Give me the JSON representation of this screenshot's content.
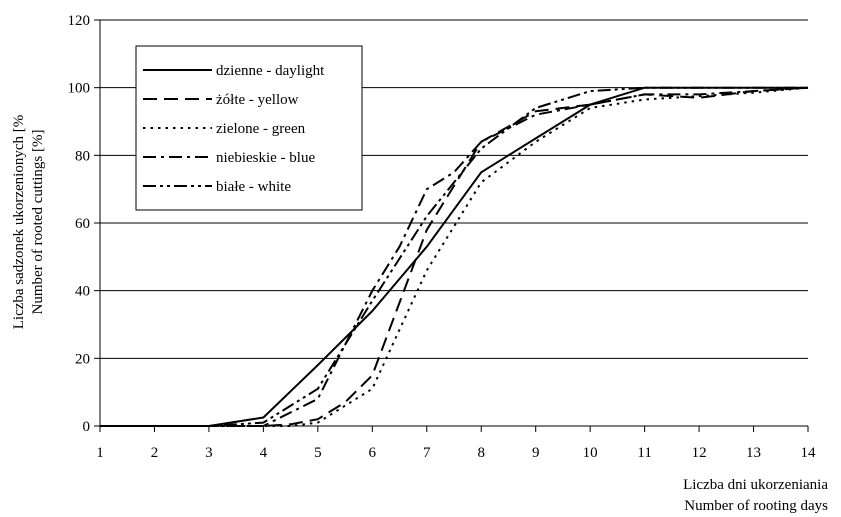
{
  "chart_data": {
    "type": "line",
    "ylabel_lines": [
      "Liczba sadzonek ukorzenionych [%",
      "Number of rooted cuttings [%]"
    ],
    "xlabel_lines": [
      "Liczba dni ukorzeniania",
      "Number of rooting days"
    ],
    "x": [
      1,
      2,
      3,
      4,
      5,
      6,
      7,
      8,
      9,
      10,
      11,
      12,
      13,
      14
    ],
    "xlim": [
      1,
      14
    ],
    "ylim": [
      0,
      120
    ],
    "yticks": [
      0,
      20,
      40,
      60,
      80,
      100,
      120
    ],
    "xticks": [
      1,
      2,
      3,
      4,
      5,
      6,
      7,
      8,
      9,
      10,
      11,
      12,
      13,
      14
    ],
    "grid": "horizontal",
    "legend_position": "top-left",
    "series": [
      {
        "name": "dzienne - daylight",
        "dash": "solid",
        "points": [
          [
            1,
            0
          ],
          [
            3,
            0
          ],
          [
            4,
            2.5
          ],
          [
            5,
            18
          ],
          [
            6,
            34
          ],
          [
            7,
            53
          ],
          [
            8,
            75
          ],
          [
            9,
            85
          ],
          [
            10,
            95
          ],
          [
            11,
            100
          ],
          [
            14,
            100
          ]
        ]
      },
      {
        "name": "żółte - yellow",
        "dash": "dash",
        "points": [
          [
            1,
            0
          ],
          [
            3,
            0
          ],
          [
            4,
            0
          ],
          [
            4.5,
            0.5
          ],
          [
            5,
            2
          ],
          [
            5.5,
            7
          ],
          [
            6,
            15
          ],
          [
            7,
            58
          ],
          [
            8,
            84
          ],
          [
            9,
            93
          ],
          [
            10,
            95
          ],
          [
            11,
            98
          ],
          [
            12,
            97
          ],
          [
            13,
            99
          ],
          [
            14,
            100
          ]
        ]
      },
      {
        "name": "zielone - green",
        "dash": "dot",
        "points": [
          [
            1,
            0
          ],
          [
            3,
            0
          ],
          [
            4,
            0
          ],
          [
            4.5,
            0
          ],
          [
            5,
            1
          ],
          [
            6,
            11
          ],
          [
            7,
            46
          ],
          [
            8,
            72
          ],
          [
            9,
            84
          ],
          [
            10,
            94
          ],
          [
            11,
            96.5
          ],
          [
            12,
            97.5
          ],
          [
            13,
            98.5
          ],
          [
            14,
            100
          ]
        ]
      },
      {
        "name": "niebieskie - blue",
        "dash": "dashdot",
        "points": [
          [
            1,
            0
          ],
          [
            3,
            0
          ],
          [
            4,
            0
          ],
          [
            5,
            8
          ],
          [
            6,
            40
          ],
          [
            6.5,
            53
          ],
          [
            7,
            70
          ],
          [
            7.5,
            75
          ],
          [
            8,
            84
          ],
          [
            9,
            92
          ],
          [
            10,
            95
          ],
          [
            11,
            98
          ],
          [
            12,
            98
          ],
          [
            13,
            99
          ],
          [
            14,
            100
          ]
        ]
      },
      {
        "name": "białe - white",
        "dash": "dashdotdot",
        "points": [
          [
            1,
            0
          ],
          [
            3,
            0
          ],
          [
            4,
            1
          ],
          [
            5,
            11
          ],
          [
            6,
            37
          ],
          [
            7,
            62
          ],
          [
            8,
            82
          ],
          [
            9,
            94
          ],
          [
            10,
            99
          ],
          [
            11,
            100
          ],
          [
            14,
            100
          ]
        ]
      }
    ]
  }
}
